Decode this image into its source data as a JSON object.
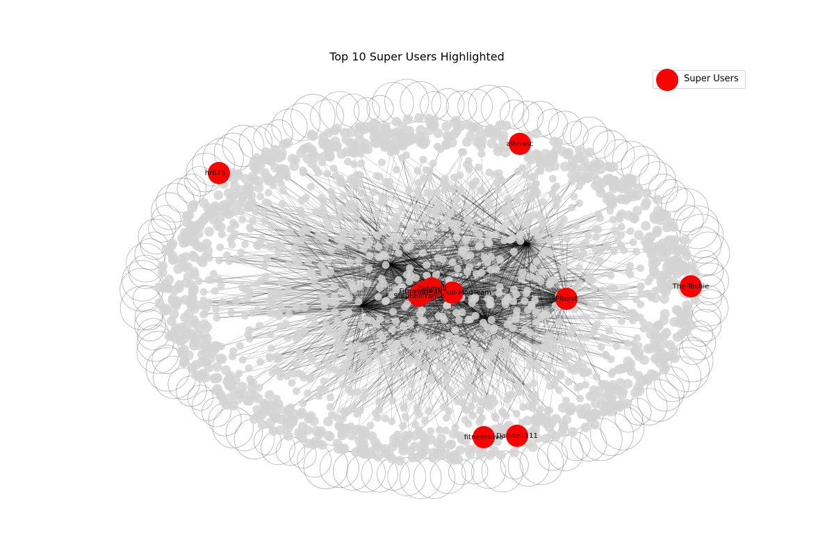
{
  "figure": {
    "title": "Top 10 Super Users Highlighted",
    "legend_label": "Super Users"
  },
  "colors": {
    "super_user": "#ff0000",
    "node": "#d3d3d3",
    "edge": "#000000",
    "label_text": "#000000"
  },
  "super_users": [
    "The-Techie",
    "Piterst",
    "albnasc",
    "hr675_",
    "fitnesssova",
    "Danise1111",
    "Stephenfrance",
    "Fitness-Club-ModTeam",
    "Zunewill",
    "FitnessFreak"
  ]
}
